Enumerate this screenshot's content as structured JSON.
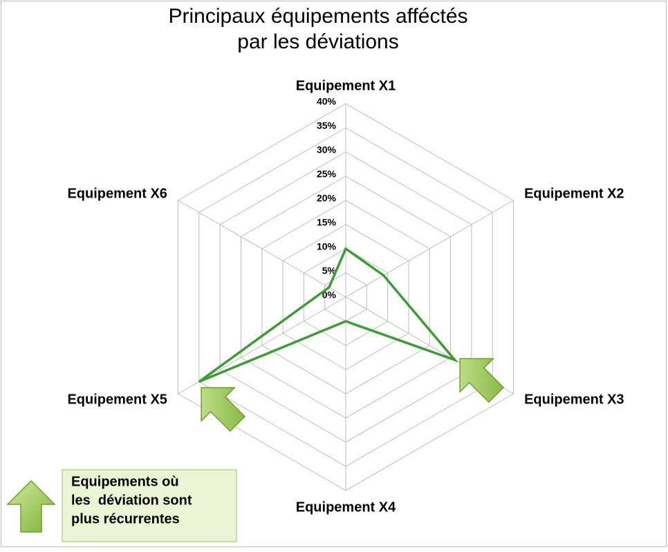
{
  "chart_data": {
    "type": "radar",
    "title": [
      "Principaux équipements afféctés",
      "par les déviations"
    ],
    "categories": [
      "Equipement X1",
      "Equipement X2",
      "Equipement X3",
      "Equipement X4",
      "Equipement X5",
      "Equipement X6"
    ],
    "values": [
      10,
      9,
      26,
      5,
      35,
      4
    ],
    "color": "#3d9b35",
    "ylim": [
      0,
      40
    ],
    "yticks": [
      {
        "value": 0,
        "label": "0%"
      },
      {
        "value": 5,
        "label": "5%"
      },
      {
        "value": 10,
        "label": "10%"
      },
      {
        "value": 15,
        "label": "15%"
      },
      {
        "value": 20,
        "label": "20%"
      },
      {
        "value": 25,
        "label": "25%"
      },
      {
        "value": 30,
        "label": "30%"
      },
      {
        "value": 35,
        "label": "35%"
      },
      {
        "value": 40,
        "label": "40%"
      }
    ],
    "grid": true,
    "annotation": [
      "Equipements où",
      "les  déviation sont",
      "plus récurrentes"
    ]
  }
}
